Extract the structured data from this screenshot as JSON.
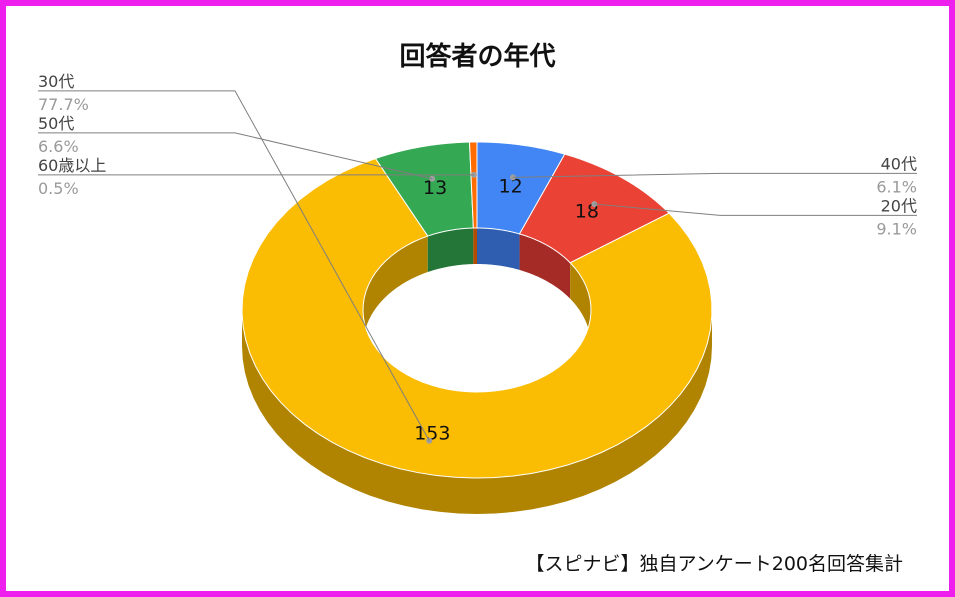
{
  "chart_data": {
    "type": "pie",
    "subtype": "3d-donut",
    "title": "回答者の年代",
    "slices": [
      {
        "label": "40代",
        "value": 12,
        "percent": "6.1%",
        "color": "#4285f4",
        "side_color": "#2f5eb0",
        "label_side": "right"
      },
      {
        "label": "20代",
        "value": 18,
        "percent": "9.1%",
        "color": "#ea4335",
        "side_color": "#a52b27",
        "label_side": "right"
      },
      {
        "label": "30代",
        "value": 153,
        "percent": "77.7%",
        "color": "#fbbc04",
        "side_color": "#b08400",
        "label_side": "left"
      },
      {
        "label": "50代",
        "value": 13,
        "percent": "6.6%",
        "color": "#34a853",
        "side_color": "#237538",
        "label_side": "left"
      },
      {
        "label": "60歳以上",
        "value": 1,
        "percent": "0.5%",
        "color": "#ff6d01",
        "side_color": "#b34c00",
        "label_side": "left"
      }
    ],
    "source_note": "【スピナビ】独自アンケート200名回答集計"
  },
  "frame_color": "#ee1fee"
}
